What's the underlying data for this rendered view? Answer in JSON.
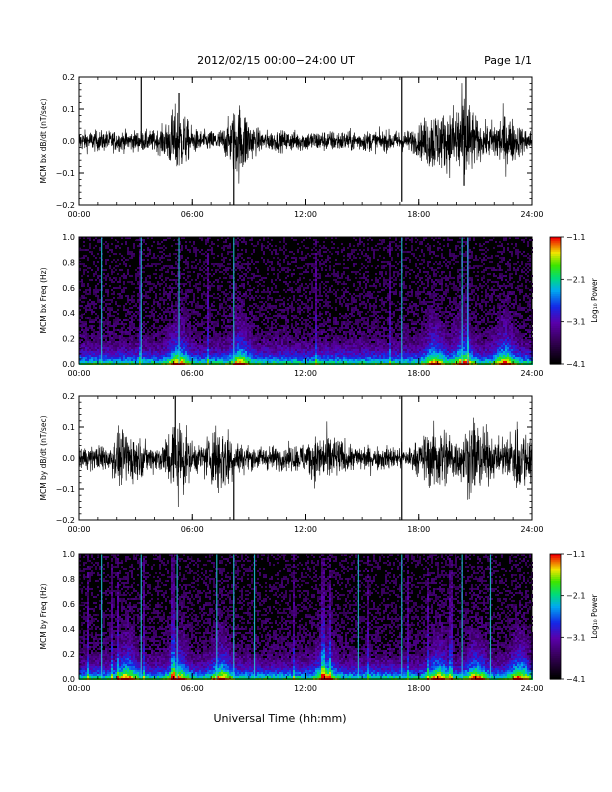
{
  "header": {
    "title": "2012/02/15  00:00−24:00 UT",
    "page": "Page 1/1"
  },
  "footer": {
    "xlabel": "Universal Time (hh:mm)"
  },
  "chart_data": [
    {
      "type": "line",
      "ylabel": "MCM bx dB/dt (nT/sec)",
      "x_ticks": [
        "00:00",
        "06:00",
        "12:00",
        "18:00",
        "24:00"
      ],
      "xlim_hours": [
        0,
        24
      ],
      "y_ticks": [
        "0.2",
        "0.1",
        "0.0",
        "−0.1",
        "−0.2"
      ],
      "ylim": [
        -0.2,
        0.2
      ],
      "baseline_amplitude": 0.03,
      "activity_bursts": [
        {
          "center_hours": 5.2,
          "width_hours": 0.6,
          "amplitude": 0.07
        },
        {
          "center_hours": 8.5,
          "width_hours": 0.6,
          "amplitude": 0.08
        },
        {
          "center_hours": 18.8,
          "width_hours": 0.7,
          "amplitude": 0.06
        },
        {
          "center_hours": 20.3,
          "width_hours": 0.7,
          "amplitude": 0.11
        },
        {
          "center_hours": 22.5,
          "width_hours": 0.8,
          "amplitude": 0.05
        }
      ],
      "spikes": [
        {
          "x_hours": 3.3,
          "y": 0.2
        },
        {
          "x_hours": 5.3,
          "y": 0.15
        },
        {
          "x_hours": 8.2,
          "y": -0.2
        },
        {
          "x_hours": 17.1,
          "y": 0.2
        },
        {
          "x_hours": 17.1,
          "y": -0.19
        },
        {
          "x_hours": 20.5,
          "y": 0.2
        },
        {
          "x_hours": 20.4,
          "y": -0.14
        }
      ]
    },
    {
      "type": "heatmap",
      "ylabel": "MCM bx Freq (Hz)",
      "x_ticks": [
        "00:00",
        "06:00",
        "12:00",
        "18:00",
        "24:00"
      ],
      "xlim_hours": [
        0,
        24
      ],
      "y_ticks": [
        "1.0",
        "0.8",
        "0.6",
        "0.4",
        "0.2",
        "0.0"
      ],
      "ylim": [
        0,
        1
      ],
      "colorbar": {
        "label": "Log₁₀ Power",
        "ticks": [
          "−1.1",
          "−2.1",
          "−3.1",
          "−4.1"
        ],
        "range": [
          -4.1,
          -1.1
        ]
      },
      "broadband_lines_hours": [
        1.2,
        3.3,
        5.3,
        8.2,
        17.1,
        20.3,
        20.6
      ],
      "enhanced_hours": [
        5.2,
        8.5,
        18.8,
        20.3,
        22.5
      ]
    },
    {
      "type": "line",
      "ylabel": "MCM by dB/dt (nT/sec)",
      "x_ticks": [
        "00:00",
        "06:00",
        "12:00",
        "18:00",
        "24:00"
      ],
      "xlim_hours": [
        0,
        24
      ],
      "y_ticks": [
        "0.2",
        "0.1",
        "0.0",
        "−0.1",
        "−0.2"
      ],
      "ylim": [
        -0.2,
        0.2
      ],
      "baseline_amplitude": 0.035,
      "activity_bursts": [
        {
          "center_hours": 2.5,
          "width_hours": 0.8,
          "amplitude": 0.05
        },
        {
          "center_hours": 5.2,
          "width_hours": 0.6,
          "amplitude": 0.09
        },
        {
          "center_hours": 7.5,
          "width_hours": 0.7,
          "amplitude": 0.08
        },
        {
          "center_hours": 13.0,
          "width_hours": 1.0,
          "amplitude": 0.04
        },
        {
          "center_hours": 19.0,
          "width_hours": 0.8,
          "amplitude": 0.07
        },
        {
          "center_hours": 21.0,
          "width_hours": 0.8,
          "amplitude": 0.08
        },
        {
          "center_hours": 23.3,
          "width_hours": 0.7,
          "amplitude": 0.07
        }
      ],
      "spikes": [
        {
          "x_hours": 5.1,
          "y": 0.2
        },
        {
          "x_hours": 8.2,
          "y": -0.2
        },
        {
          "x_hours": 17.1,
          "y": 0.2
        },
        {
          "x_hours": 17.1,
          "y": -0.2
        }
      ]
    },
    {
      "type": "heatmap",
      "ylabel": "MCM by Freq (Hz)",
      "x_ticks": [
        "00:00",
        "06:00",
        "12:00",
        "18:00",
        "24:00"
      ],
      "xlim_hours": [
        0,
        24
      ],
      "y_ticks": [
        "1.0",
        "0.8",
        "0.6",
        "0.4",
        "0.2",
        "0.0"
      ],
      "ylim": [
        0,
        1
      ],
      "colorbar": {
        "label": "Log₁₀ Power",
        "ticks": [
          "−1.1",
          "−2.1",
          "−3.1",
          "−4.1"
        ],
        "range": [
          -4.1,
          -1.1
        ]
      },
      "broadband_lines_hours": [
        1.2,
        3.3,
        5.2,
        7.3,
        8.2,
        9.3,
        14.8,
        17.1,
        20.3,
        21.8
      ],
      "enhanced_hours": [
        2.5,
        5.2,
        7.5,
        13.0,
        19.0,
        21.0,
        23.3
      ]
    }
  ]
}
